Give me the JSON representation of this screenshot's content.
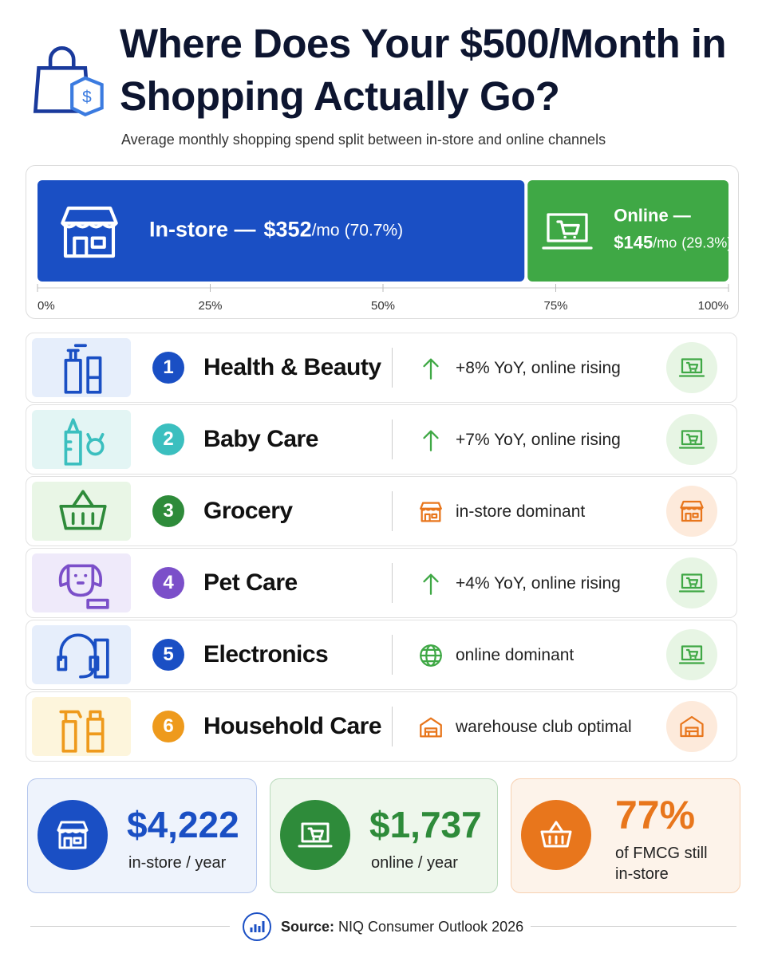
{
  "header": {
    "title": "Where Does Your $500/Month in Shopping Actually Go?",
    "subtitle": "Average monthly shopping spend split between in-store and online channels"
  },
  "chart_data": {
    "type": "bar",
    "orientation": "horizontal",
    "stacked": true,
    "xlim": [
      0,
      100
    ],
    "xticks": [
      {
        "value": 0,
        "label": "0%"
      },
      {
        "value": 25,
        "label": "25%"
      },
      {
        "value": 50,
        "label": "50%"
      },
      {
        "value": 75,
        "label": "75%"
      },
      {
        "value": 100,
        "label": "100%"
      }
    ],
    "series": [
      {
        "name": "In-store —",
        "amount": "$352",
        "unit": "/mo",
        "color": "#1a4fc4",
        "values": [
          70.7
        ],
        "value_labels": [
          "(70.7%)"
        ]
      },
      {
        "name": "Online —",
        "amount": "$145",
        "unit": "/mo",
        "color": "#3fa845",
        "values": [
          29.3
        ],
        "value_labels": [
          "(29.3%)"
        ]
      }
    ]
  },
  "categories": [
    {
      "rank": 1,
      "name": "Health & Beauty",
      "note": "+8% YoY, online rising",
      "color": "#1a4fc4",
      "background": "#e6eefb"
    },
    {
      "rank": 2,
      "name": "Baby Care",
      "note": "+7% YoY, online rising",
      "color": "#3bbfbf",
      "background": "#e3f5f4"
    },
    {
      "rank": 3,
      "name": "Grocery",
      "note": "in-store dominant",
      "color": "#2e8b3a",
      "background": "#e9f6e6"
    },
    {
      "rank": 4,
      "name": "Pet Care",
      "note": "+4% YoY, online rising",
      "color": "#7b4fc9",
      "background": "#efeafa"
    },
    {
      "rank": 5,
      "name": "Electronics",
      "note": "online dominant",
      "color": "#1a4fc4",
      "background": "#e6eefb"
    },
    {
      "rank": 6,
      "name": "Household Care",
      "note": "warehouse club optimal",
      "color": "#ee9a1c",
      "background": "#fdf5dc"
    }
  ],
  "stats": [
    {
      "value": "$4,222",
      "label": "in-store / year",
      "color": "#1a4fc4",
      "background": "#eef3fc"
    },
    {
      "value": "$1,737",
      "label": "online / year",
      "color": "#2e8b3a",
      "background": "#eef7ec"
    },
    {
      "value": "77%",
      "label": "of FMCG still in-store",
      "color": "#e8761c",
      "background": "#fdf3ea"
    }
  ],
  "footer": {
    "source_label": "Source:",
    "source": "NIQ Consumer Outlook 2026"
  }
}
